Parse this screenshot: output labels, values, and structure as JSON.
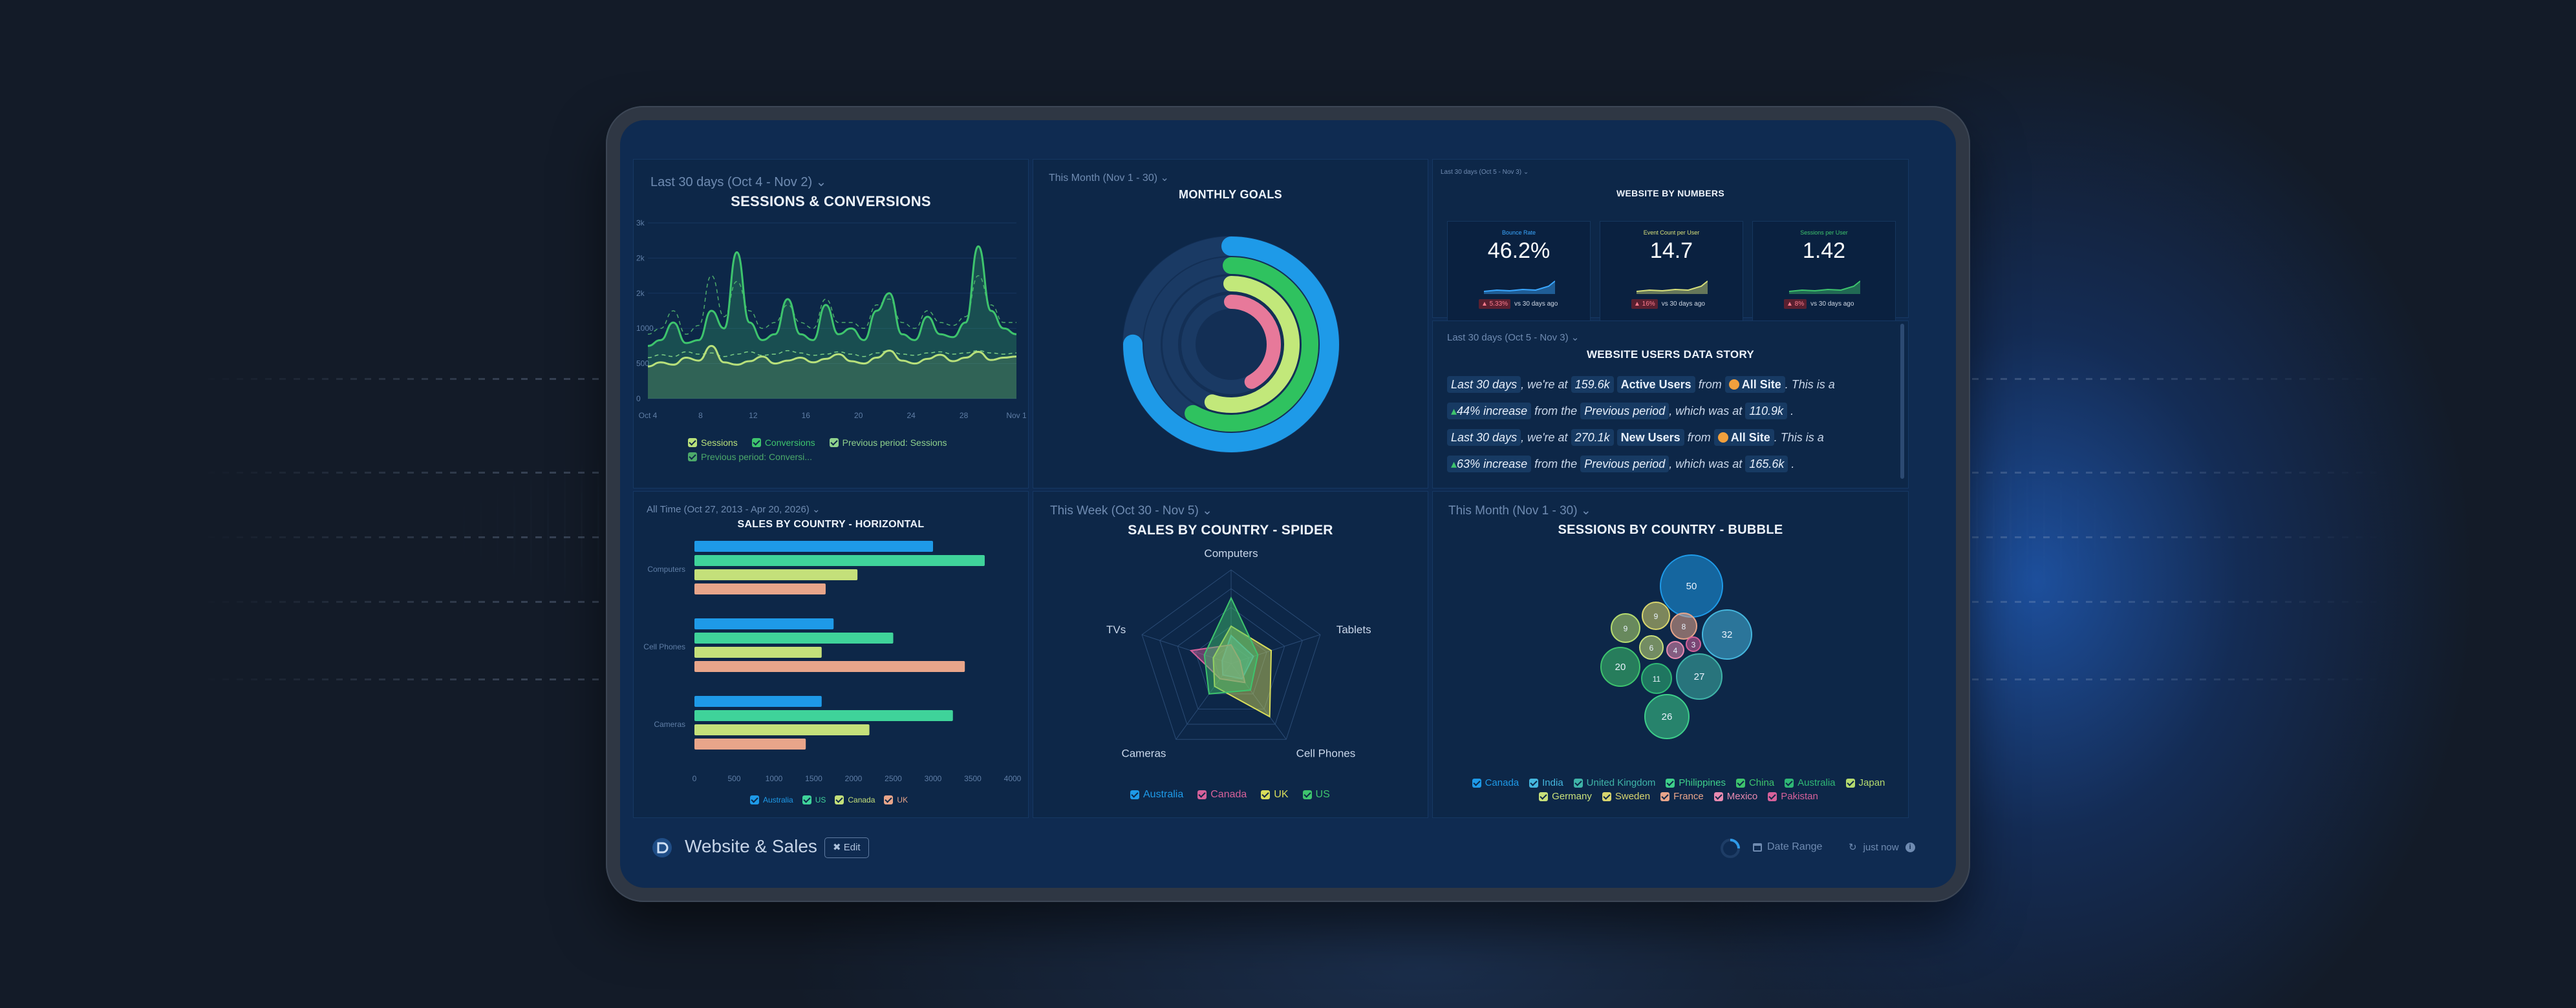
{
  "dashboard": {
    "title": "Website & Sales",
    "edit_label": "Edit",
    "date_range_label": "Date Range",
    "refresh_label": "just now"
  },
  "sessions": {
    "range": "Last 30 days (Oct 4 - Nov 2)",
    "title": "SESSIONS & CONVERSIONS",
    "legend": [
      "Sessions",
      "Conversions",
      "Previous period: Sessions",
      "Previous period: Conversi..."
    ],
    "colors": [
      "#b8e07a",
      "#3ec46d",
      "#8fd18c",
      "#4ca96a"
    ],
    "chart_data": {
      "type": "line",
      "x_ticks": [
        "Oct 4",
        "8",
        "12",
        "16",
        "20",
        "24",
        "28",
        "Nov 1"
      ],
      "y_ticks": [
        "0",
        "500",
        "1000",
        "2k",
        "2k",
        "3k"
      ],
      "series": [
        {
          "name": "Sessions",
          "values": [
            550,
            620,
            580,
            700,
            650,
            900,
            620,
            580,
            640,
            720,
            600,
            650,
            700,
            620,
            680,
            760,
            640,
            600,
            700,
            820,
            650,
            600,
            680,
            750,
            640,
            700,
            800,
            660,
            700,
            720
          ]
        },
        {
          "name": "Conversions",
          "values": [
            900,
            1000,
            1300,
            950,
            1000,
            1500,
            1200,
            2500,
            1300,
            1000,
            1100,
            1700,
            1100,
            1000,
            1600,
            1100,
            1200,
            1000,
            1500,
            1800,
            1100,
            1000,
            1400,
            1100,
            1050,
            1300,
            2600,
            1500,
            1200,
            1100
          ]
        },
        {
          "name": "Previous period: Sessions",
          "values": [
            700,
            750,
            720,
            800,
            760,
            780,
            720,
            760,
            800,
            740,
            760,
            820,
            780,
            740,
            760,
            800,
            760,
            720,
            780,
            820,
            760,
            740,
            780,
            800,
            760,
            780,
            820,
            780,
            760,
            780
          ]
        },
        {
          "name": "Previous period: Conversi...",
          "values": [
            1100,
            1200,
            1500,
            1100,
            1250,
            2100,
            1400,
            2000,
            1500,
            1200,
            1300,
            1600,
            1300,
            1200,
            1700,
            1300,
            1300,
            1200,
            1600,
            1700,
            1300,
            1200,
            1500,
            1300,
            1250,
            1400,
            2100,
            1600,
            1300,
            1300
          ]
        }
      ]
    }
  },
  "goals": {
    "range": "This Month (Nov 1 - 30)",
    "title": "MONTHLY GOALS",
    "chart_data": {
      "type": "pie",
      "rings": [
        {
          "value": 0.75,
          "color": "#1e9ae8"
        },
        {
          "value": 0.58,
          "color": "#2fc25f"
        },
        {
          "value": 0.55,
          "color": "#c2e87a"
        },
        {
          "value": 0.42,
          "color": "#e7799a"
        }
      ]
    }
  },
  "numbers": {
    "range": "Last 30 days (Oct 5 - Nov 3)",
    "title": "WEBSITE BY NUMBERS",
    "kpis": [
      {
        "label": "Bounce Rate",
        "value": "46.2%",
        "change": "5.33%",
        "suffix": "vs 30 days ago",
        "color": "#3aa7ff"
      },
      {
        "label": "Event Count per User",
        "value": "14.7",
        "change": "16%",
        "suffix": "vs 30 days ago",
        "color": "#d7e07a"
      },
      {
        "label": "Sessions per User",
        "value": "1.42",
        "change": "8%",
        "suffix": "vs 30 days ago",
        "color": "#3ec46d"
      }
    ]
  },
  "story": {
    "range": "Last 30 days (Oct 5 - Nov 3)",
    "title": "WEBSITE USERS DATA STORY",
    "l1": {
      "a": "Last 30 days",
      "b": ", we're at",
      "c": "159.6k",
      "d": "Active Users",
      "e": "from",
      "f": "All Site",
      "g": ". This is a"
    },
    "l2": {
      "a": "44% increase",
      "b": "from the",
      "c": "Previous period",
      "d": ", which was at",
      "e": "110.9k",
      "f": "."
    },
    "l3": {
      "a": "Last 30 days",
      "b": ", we're at",
      "c": "270.1k",
      "d": "New Users",
      "e": "from",
      "f": "All Site",
      "g": ". This is a"
    },
    "l4": {
      "a": "63% increase",
      "b": "from the",
      "c": "Previous period",
      "d": ", which was at",
      "e": "165.6k",
      "f": "."
    }
  },
  "horizontal": {
    "range": "All Time (Oct 27, 2013 - Apr 20, 2026)",
    "title": "SALES BY COUNTRY - HORIZONTAL",
    "chart_data": {
      "type": "bar",
      "orientation": "horizontal",
      "categories": [
        "Computers",
        "Cell Phones",
        "Cameras"
      ],
      "x_ticks": [
        "0",
        "500",
        "1000",
        "1500",
        "2000",
        "2500",
        "3000",
        "3500",
        "4000"
      ],
      "xlim": [
        0,
        4000
      ],
      "series": [
        {
          "name": "Australia",
          "color": "#1e9ae8",
          "values": [
            3000,
            1750,
            1600
          ]
        },
        {
          "name": "US",
          "color": "#3fd39a",
          "values": [
            3650,
            2500,
            3250
          ]
        },
        {
          "name": "Canada",
          "color": "#c4e07a",
          "values": [
            2050,
            1600,
            2200
          ]
        },
        {
          "name": "UK",
          "color": "#e8a58a",
          "values": [
            1650,
            3400,
            1400
          ]
        }
      ]
    }
  },
  "spider": {
    "range": "This Week (Oct 30 - Nov 5)",
    "title": "SALES BY COUNTRY - SPIDER",
    "chart_data": {
      "type": "radar",
      "axes": [
        "Computers",
        "Tablets",
        "Cell Phones",
        "Cameras",
        "TVs"
      ],
      "series": [
        {
          "name": "Australia",
          "color": "#1e9ae8",
          "values": [
            0.3,
            0.25,
            0.2,
            0.15,
            0.1
          ]
        },
        {
          "name": "Canada",
          "color": "#d6619a",
          "values": [
            0.2,
            0.1,
            0.25,
            0.2,
            0.45
          ]
        },
        {
          "name": "UK",
          "color": "#d8dd5a",
          "values": [
            0.4,
            0.45,
            0.7,
            0.3,
            0.2
          ]
        },
        {
          "name": "US",
          "color": "#3ec46d",
          "values": [
            0.7,
            0.3,
            0.35,
            0.4,
            0.3
          ]
        }
      ]
    }
  },
  "bubble": {
    "range": "This Month (Nov 1 - 30)",
    "title": "SESSIONS BY COUNTRY - BUBBLE",
    "chart_data": {
      "type": "bubble",
      "bubbles": [
        {
          "label": "50",
          "value": 50,
          "color": "#1e9ae8",
          "cx": 0,
          "cy": -80,
          "r": 48
        },
        {
          "label": "32",
          "value": 32,
          "color": "#45b7de",
          "cx": 55,
          "cy": -5,
          "r": 38
        },
        {
          "label": "27",
          "value": 27,
          "color": "#3fb4a8",
          "cx": 12,
          "cy": 60,
          "r": 35
        },
        {
          "label": "26",
          "value": 26,
          "color": "#3ecf8a",
          "cx": -38,
          "cy": 122,
          "r": 34
        },
        {
          "label": "20",
          "value": 20,
          "color": "#3ec46d",
          "cx": -110,
          "cy": 45,
          "r": 30
        },
        {
          "label": "11",
          "value": 11,
          "color": "#2fb875",
          "cx": -54,
          "cy": 63,
          "r": 23
        },
        {
          "label": "9",
          "value": 9,
          "color": "#b5db6f",
          "cx": -102,
          "cy": -15,
          "r": 22
        },
        {
          "label": "9",
          "value": 9,
          "color": "#d8d56e",
          "cx": -55,
          "cy": -34,
          "r": 21
        },
        {
          "label": "8",
          "value": 8,
          "color": "#e8a58a",
          "cx": -12,
          "cy": -18,
          "r": 20
        },
        {
          "label": "6",
          "value": 6,
          "color": "#c8e07a",
          "cx": -62,
          "cy": 15,
          "r": 18
        },
        {
          "label": "4",
          "value": 4,
          "color": "#e88ab0",
          "cx": -25,
          "cy": 19,
          "r": 13
        },
        {
          "label": "3",
          "value": 3,
          "color": "#d6619a",
          "cx": 3,
          "cy": 10,
          "r": 11
        }
      ]
    },
    "legend": [
      {
        "name": "Canada",
        "color": "#1e9ae8"
      },
      {
        "name": "India",
        "color": "#45b7de"
      },
      {
        "name": "United Kingdom",
        "color": "#3fb4a8"
      },
      {
        "name": "Philippines",
        "color": "#3ecf8a"
      },
      {
        "name": "China",
        "color": "#3ec46d"
      },
      {
        "name": "Australia",
        "color": "#2fb875"
      },
      {
        "name": "Japan",
        "color": "#b5db6f"
      },
      {
        "name": "Germany",
        "color": "#c8e07a"
      },
      {
        "name": "Sweden",
        "color": "#d8d56e"
      },
      {
        "name": "France",
        "color": "#e8a58a"
      },
      {
        "name": "Mexico",
        "color": "#e88ab0"
      },
      {
        "name": "Pakistan",
        "color": "#d6619a"
      }
    ]
  }
}
